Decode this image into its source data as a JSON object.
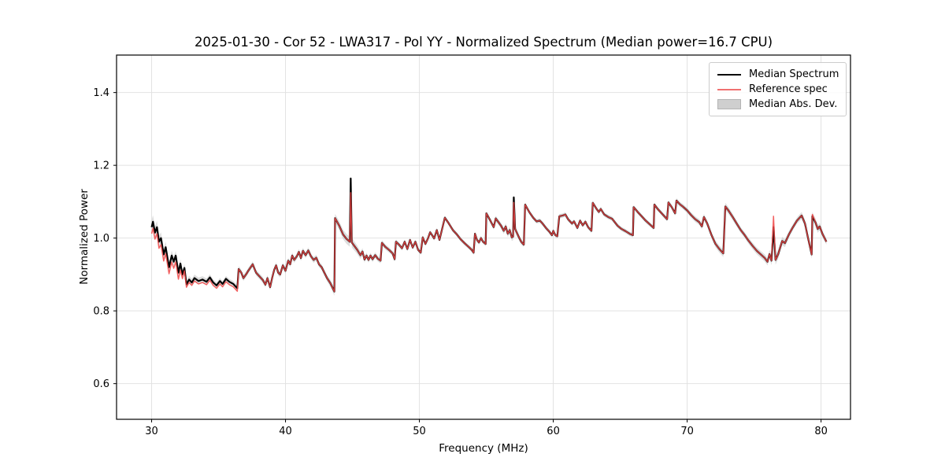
{
  "figure": {
    "title": "2025-01-30 - Cor 52 - LWA317 - Pol YY - Normalized Spectrum (Median power=16.7 CPU)",
    "background_color": "#ffffff"
  },
  "chart_data": {
    "type": "line",
    "title": "2025-01-30 - Cor 52 - LWA317 - Pol YY - Normalized Spectrum (Median power=16.7 CPU)",
    "xlabel": "Frequency (MHz)",
    "ylabel": "Normalized Power",
    "xlim": [
      27.38,
      82.2
    ],
    "ylim": [
      0.502,
      1.503
    ],
    "xticks": [
      30,
      40,
      50,
      60,
      70,
      80
    ],
    "yticks": [
      0.6,
      0.8,
      1.0,
      1.2,
      1.4
    ],
    "grid": true,
    "grid_color": "#e2e2e2",
    "spine_color": "#000000",
    "legend_position": "upper right",
    "series": [
      {
        "name": "Median Spectrum",
        "color": "#000000",
        "line_width": 2.2,
        "points": [
          [
            30.0,
            1.03
          ],
          [
            30.1,
            1.045
          ],
          [
            30.25,
            1.015
          ],
          [
            30.4,
            1.03
          ],
          [
            30.55,
            0.99
          ],
          [
            30.7,
            1.0
          ],
          [
            30.9,
            0.955
          ],
          [
            31.05,
            0.975
          ],
          [
            31.3,
            0.92
          ],
          [
            31.5,
            0.952
          ],
          [
            31.65,
            0.935
          ],
          [
            31.8,
            0.952
          ],
          [
            32.0,
            0.905
          ],
          [
            32.15,
            0.93
          ],
          [
            32.3,
            0.9
          ],
          [
            32.45,
            0.918
          ],
          [
            32.6,
            0.873
          ],
          [
            32.8,
            0.886
          ],
          [
            33.0,
            0.878
          ],
          [
            33.2,
            0.89
          ],
          [
            33.5,
            0.882
          ],
          [
            33.8,
            0.886
          ],
          [
            34.1,
            0.88
          ],
          [
            34.35,
            0.892
          ],
          [
            34.6,
            0.878
          ],
          [
            34.85,
            0.87
          ],
          [
            35.1,
            0.882
          ],
          [
            35.3,
            0.874
          ],
          [
            35.55,
            0.888
          ],
          [
            35.8,
            0.88
          ],
          [
            36.1,
            0.874
          ],
          [
            36.4,
            0.862
          ],
          [
            36.5,
            0.915
          ],
          [
            36.7,
            0.905
          ],
          [
            36.85,
            0.89
          ],
          [
            37.05,
            0.9
          ],
          [
            37.25,
            0.912
          ],
          [
            37.55,
            0.928
          ],
          [
            37.8,
            0.905
          ],
          [
            38.05,
            0.895
          ],
          [
            38.3,
            0.885
          ],
          [
            38.5,
            0.872
          ],
          [
            38.65,
            0.89
          ],
          [
            38.85,
            0.865
          ],
          [
            39.0,
            0.89
          ],
          [
            39.15,
            0.912
          ],
          [
            39.3,
            0.925
          ],
          [
            39.45,
            0.905
          ],
          [
            39.6,
            0.9
          ],
          [
            39.8,
            0.925
          ],
          [
            40.0,
            0.91
          ],
          [
            40.2,
            0.938
          ],
          [
            40.35,
            0.928
          ],
          [
            40.5,
            0.952
          ],
          [
            40.65,
            0.94
          ],
          [
            40.85,
            0.95
          ],
          [
            41.0,
            0.962
          ],
          [
            41.15,
            0.945
          ],
          [
            41.3,
            0.965
          ],
          [
            41.5,
            0.953
          ],
          [
            41.7,
            0.966
          ],
          [
            41.9,
            0.95
          ],
          [
            42.1,
            0.94
          ],
          [
            42.3,
            0.946
          ],
          [
            42.5,
            0.928
          ],
          [
            42.7,
            0.92
          ],
          [
            42.9,
            0.905
          ],
          [
            43.1,
            0.89
          ],
          [
            43.35,
            0.876
          ],
          [
            43.65,
            0.853
          ],
          [
            43.7,
            1.055
          ],
          [
            44.0,
            1.035
          ],
          [
            44.3,
            1.01
          ],
          [
            44.55,
            0.998
          ],
          [
            44.8,
            0.99
          ],
          [
            44.87,
            1.164
          ],
          [
            44.95,
            0.988
          ],
          [
            45.15,
            0.978
          ],
          [
            45.35,
            0.968
          ],
          [
            45.6,
            0.953
          ],
          [
            45.75,
            0.963
          ],
          [
            45.9,
            0.941
          ],
          [
            46.05,
            0.952
          ],
          [
            46.2,
            0.94
          ],
          [
            46.35,
            0.952
          ],
          [
            46.5,
            0.942
          ],
          [
            46.7,
            0.953
          ],
          [
            46.9,
            0.943
          ],
          [
            47.1,
            0.938
          ],
          [
            47.2,
            0.987
          ],
          [
            47.45,
            0.976
          ],
          [
            47.75,
            0.967
          ],
          [
            48.0,
            0.958
          ],
          [
            48.15,
            0.942
          ],
          [
            48.25,
            0.99
          ],
          [
            48.5,
            0.981
          ],
          [
            48.7,
            0.972
          ],
          [
            48.9,
            0.99
          ],
          [
            49.1,
            0.97
          ],
          [
            49.3,
            0.995
          ],
          [
            49.5,
            0.974
          ],
          [
            49.7,
            0.99
          ],
          [
            49.9,
            0.968
          ],
          [
            50.1,
            0.96
          ],
          [
            50.25,
            1.002
          ],
          [
            50.45,
            0.984
          ],
          [
            50.65,
            1.0
          ],
          [
            50.8,
            1.016
          ],
          [
            50.95,
            1.008
          ],
          [
            51.1,
            0.999
          ],
          [
            51.3,
            1.022
          ],
          [
            51.5,
            0.995
          ],
          [
            51.9,
            1.056
          ],
          [
            52.2,
            1.04
          ],
          [
            52.5,
            1.022
          ],
          [
            52.8,
            1.01
          ],
          [
            53.1,
            0.996
          ],
          [
            53.4,
            0.985
          ],
          [
            53.7,
            0.975
          ],
          [
            53.9,
            0.968
          ],
          [
            54.05,
            0.96
          ],
          [
            54.15,
            1.012
          ],
          [
            54.3,
            0.995
          ],
          [
            54.45,
            0.988
          ],
          [
            54.6,
            1.0
          ],
          [
            54.75,
            0.99
          ],
          [
            54.95,
            0.984
          ],
          [
            55.0,
            1.068
          ],
          [
            55.3,
            1.048
          ],
          [
            55.55,
            1.03
          ],
          [
            55.7,
            1.054
          ],
          [
            55.9,
            1.044
          ],
          [
            56.1,
            1.034
          ],
          [
            56.3,
            1.02
          ],
          [
            56.45,
            1.032
          ],
          [
            56.6,
            1.012
          ],
          [
            56.75,
            1.022
          ],
          [
            56.9,
            1.002
          ],
          [
            57.0,
            1.004
          ],
          [
            57.05,
            1.112
          ],
          [
            57.15,
            1.025
          ],
          [
            57.4,
            1.005
          ],
          [
            57.6,
            0.99
          ],
          [
            57.8,
            0.982
          ],
          [
            57.9,
            1.092
          ],
          [
            58.2,
            1.072
          ],
          [
            58.5,
            1.056
          ],
          [
            58.75,
            1.046
          ],
          [
            59.0,
            1.048
          ],
          [
            59.2,
            1.04
          ],
          [
            59.45,
            1.028
          ],
          [
            59.7,
            1.018
          ],
          [
            59.9,
            1.008
          ],
          [
            60.0,
            1.02
          ],
          [
            60.15,
            1.008
          ],
          [
            60.3,
            1.005
          ],
          [
            60.45,
            1.06
          ],
          [
            60.7,
            1.062
          ],
          [
            60.9,
            1.065
          ],
          [
            61.1,
            1.052
          ],
          [
            61.4,
            1.04
          ],
          [
            61.55,
            1.046
          ],
          [
            61.8,
            1.028
          ],
          [
            62.0,
            1.048
          ],
          [
            62.2,
            1.035
          ],
          [
            62.4,
            1.045
          ],
          [
            62.6,
            1.03
          ],
          [
            62.85,
            1.02
          ],
          [
            62.95,
            1.097
          ],
          [
            63.2,
            1.082
          ],
          [
            63.4,
            1.072
          ],
          [
            63.55,
            1.08
          ],
          [
            63.8,
            1.065
          ],
          [
            64.1,
            1.058
          ],
          [
            64.4,
            1.053
          ],
          [
            64.8,
            1.034
          ],
          [
            65.1,
            1.025
          ],
          [
            65.4,
            1.019
          ],
          [
            65.7,
            1.012
          ],
          [
            65.95,
            1.008
          ],
          [
            66.0,
            1.085
          ],
          [
            66.3,
            1.072
          ],
          [
            66.6,
            1.06
          ],
          [
            66.9,
            1.048
          ],
          [
            67.2,
            1.038
          ],
          [
            67.5,
            1.028
          ],
          [
            67.55,
            1.092
          ],
          [
            67.8,
            1.08
          ],
          [
            68.1,
            1.068
          ],
          [
            68.35,
            1.058
          ],
          [
            68.5,
            1.052
          ],
          [
            68.6,
            1.098
          ],
          [
            68.85,
            1.085
          ],
          [
            69.1,
            1.068
          ],
          [
            69.2,
            1.103
          ],
          [
            69.45,
            1.093
          ],
          [
            69.7,
            1.086
          ],
          [
            70.0,
            1.076
          ],
          [
            70.3,
            1.063
          ],
          [
            70.6,
            1.052
          ],
          [
            70.9,
            1.044
          ],
          [
            71.1,
            1.032
          ],
          [
            71.25,
            1.058
          ],
          [
            71.5,
            1.04
          ],
          [
            71.8,
            1.01
          ],
          [
            72.1,
            0.985
          ],
          [
            72.4,
            0.97
          ],
          [
            72.7,
            0.958
          ],
          [
            72.85,
            1.087
          ],
          [
            73.1,
            1.075
          ],
          [
            73.4,
            1.058
          ],
          [
            73.7,
            1.04
          ],
          [
            74.0,
            1.022
          ],
          [
            74.3,
            1.008
          ],
          [
            74.6,
            0.992
          ],
          [
            74.9,
            0.978
          ],
          [
            75.2,
            0.965
          ],
          [
            75.5,
            0.955
          ],
          [
            75.8,
            0.945
          ],
          [
            76.0,
            0.935
          ],
          [
            76.15,
            0.956
          ],
          [
            76.3,
            0.938
          ],
          [
            76.45,
            1.03
          ],
          [
            76.6,
            0.94
          ],
          [
            76.8,
            0.956
          ],
          [
            77.1,
            0.992
          ],
          [
            77.3,
            0.986
          ],
          [
            77.6,
            1.01
          ],
          [
            77.9,
            1.03
          ],
          [
            78.2,
            1.048
          ],
          [
            78.55,
            1.062
          ],
          [
            78.8,
            1.04
          ],
          [
            79.0,
            1.005
          ],
          [
            79.3,
            0.955
          ],
          [
            79.35,
            1.06
          ],
          [
            79.6,
            1.042
          ],
          [
            79.75,
            1.025
          ],
          [
            79.9,
            1.032
          ],
          [
            80.1,
            1.012
          ],
          [
            80.4,
            0.99
          ]
        ]
      },
      {
        "name": "Reference spec",
        "color": "#f04646",
        "line_width": 1.5,
        "opacity": 0.85,
        "derived_from": "Median Spectrum",
        "offsets": [
          [
            27.38,
            -0.018
          ],
          [
            32.2,
            -0.018
          ],
          [
            32.35,
            -0.008
          ],
          [
            36.45,
            -0.008
          ],
          [
            36.5,
            0.0
          ],
          [
            82.2,
            0.0
          ]
        ],
        "point_overrides": [
          [
            44.87,
            1.125
          ],
          [
            57.05,
            1.098
          ],
          [
            76.45,
            1.06
          ],
          [
            79.35,
            1.065
          ]
        ]
      },
      {
        "name": "Median Abs. Dev.",
        "color": "#c8c8c8",
        "opacity": 0.6,
        "band_around": "Median Spectrum",
        "halfwidth_points": [
          [
            30.0,
            0.018
          ],
          [
            31.0,
            0.015
          ],
          [
            32.0,
            0.012
          ],
          [
            33.0,
            0.01
          ],
          [
            35.0,
            0.008
          ],
          [
            40.0,
            0.008
          ],
          [
            43.0,
            0.008
          ],
          [
            43.8,
            0.012
          ],
          [
            44.87,
            0.014
          ],
          [
            46.0,
            0.008
          ],
          [
            50.0,
            0.006
          ],
          [
            55.0,
            0.006
          ],
          [
            57.0,
            0.01
          ],
          [
            58.0,
            0.006
          ],
          [
            63.0,
            0.006
          ],
          [
            68.0,
            0.006
          ],
          [
            71.0,
            0.008
          ],
          [
            72.8,
            0.01
          ],
          [
            74.0,
            0.008
          ],
          [
            76.0,
            0.01
          ],
          [
            76.45,
            0.014
          ],
          [
            78.0,
            0.008
          ],
          [
            79.35,
            0.012
          ],
          [
            80.4,
            0.008
          ]
        ]
      }
    ]
  },
  "legend": {
    "items": [
      {
        "label": "Median Spectrum",
        "swatch": "line",
        "color": "#000000"
      },
      {
        "label": "Reference spec",
        "swatch": "line",
        "color": "#f07070"
      },
      {
        "label": "Median Abs. Dev.",
        "swatch": "patch",
        "color": "#cfcfcf",
        "edge_color": "#b4b4b4"
      }
    ]
  }
}
